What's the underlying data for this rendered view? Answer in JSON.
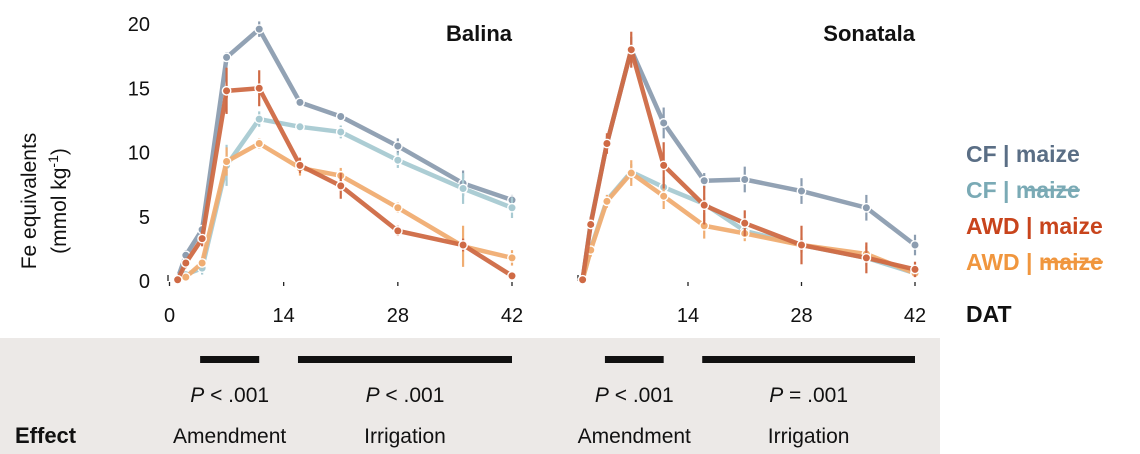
{
  "chart_data": {
    "type": "line",
    "ylabel": "Fe equivalents",
    "ylabel_unit_prefix": "(mmol kg",
    "ylabel_unit_sup": "-1",
    "ylabel_unit_suffix": ")",
    "ylim": [
      0,
      20
    ],
    "yticks": [
      "0",
      "5",
      "10",
      "15",
      "20"
    ],
    "xlim": [
      0,
      42
    ],
    "xaxis_label": "DAT",
    "colors": {
      "CF_maize": "#8c9db0",
      "CF_nomaize": "#a8cad2",
      "AWD_maize": "#cf6a45",
      "AWD_nomaize": "#f0ad72"
    },
    "legend": [
      {
        "id": "CF_maize",
        "prefix": "CF | ",
        "maize": "maize",
        "struck": false,
        "color": "#5a6e85"
      },
      {
        "id": "CF_nomaize",
        "prefix": "CF | ",
        "maize": "maize",
        "struck": true,
        "color": "#7aaab5"
      },
      {
        "id": "AWD_maize",
        "prefix": "AWD | ",
        "maize": "maize",
        "struck": false,
        "color": "#c8441c"
      },
      {
        "id": "AWD_nomaize",
        "prefix": "AWD | ",
        "maize": "maize",
        "struck": true,
        "color": "#f0963e"
      }
    ],
    "panels": [
      {
        "title": "Balina",
        "xticks": [
          "0",
          "14",
          "28",
          "42"
        ],
        "xtick_values": [
          0,
          14,
          28,
          42
        ],
        "series": [
          {
            "id": "CF_maize",
            "x": [
              1,
              2,
              4,
              7,
              11,
              16,
              21,
              28,
              36,
              42
            ],
            "y": [
              0.2,
              2.0,
              4.0,
              17.4,
              19.6,
              13.9,
              12.8,
              10.5,
              7.6,
              6.3
            ],
            "err": [
              0.1,
              0.4,
              0.6,
              0.4,
              0.6,
              0.3,
              0.3,
              0.6,
              1.0,
              0.4
            ]
          },
          {
            "id": "CF_nomaize",
            "x": [
              1,
              2,
              4,
              7,
              11,
              16,
              21,
              28,
              36,
              42
            ],
            "y": [
              0.1,
              0.5,
              1.0,
              9.0,
              12.6,
              12.0,
              11.6,
              9.4,
              7.2,
              5.7
            ],
            "err": [
              0.1,
              0.3,
              0.5,
              1.6,
              0.6,
              0.3,
              0.5,
              0.6,
              1.2,
              0.8
            ]
          },
          {
            "id": "AWD_maize",
            "x": [
              1,
              2,
              4,
              7,
              11,
              16,
              21,
              28,
              36,
              42
            ],
            "y": [
              0.1,
              1.4,
              3.3,
              14.8,
              15.0,
              9.0,
              7.4,
              3.9,
              2.8,
              0.4
            ],
            "err": [
              0.1,
              0.4,
              0.6,
              1.8,
              1.4,
              0.6,
              1.0,
              0.4,
              0.5,
              0.2
            ]
          },
          {
            "id": "AWD_nomaize",
            "x": [
              1,
              2,
              4,
              7,
              11,
              16,
              21,
              28,
              36,
              42
            ],
            "y": [
              0.1,
              0.3,
              1.4,
              9.3,
              10.7,
              8.8,
              8.2,
              5.7,
              2.7,
              1.8
            ],
            "err": [
              0.1,
              0.2,
              0.4,
              1.1,
              0.4,
              0.6,
              0.6,
              0.4,
              1.6,
              0.6
            ]
          }
        ],
        "bars": [
          {
            "x0": 4,
            "x1": 11,
            "p": "< .001",
            "label": "Amendment"
          },
          {
            "x0": 16,
            "x1": 42,
            "p": "< .001",
            "label": "Irrigation"
          }
        ]
      },
      {
        "title": "Sonatala",
        "xticks": [
          "14",
          "28",
          "42"
        ],
        "xtick_values": [
          14,
          28,
          42
        ],
        "series": [
          {
            "id": "CF_maize",
            "x": [
              1,
              2,
              4,
              7,
              11,
              16,
              21,
              28,
              36,
              42
            ],
            "y": [
              0.1,
              4.5,
              10.7,
              18.0,
              12.3,
              7.8,
              7.9,
              7.0,
              5.7,
              2.8
            ],
            "err": [
              0.1,
              0.4,
              0.6,
              1.0,
              1.2,
              0.6,
              1.0,
              1.0,
              1.0,
              0.8
            ]
          },
          {
            "id": "CF_nomaize",
            "x": [
              1,
              2,
              4,
              7,
              11,
              16,
              21,
              28,
              36,
              42
            ],
            "y": [
              0.1,
              2.5,
              6.3,
              8.5,
              7.3,
              6.0,
              3.9,
              2.8,
              1.8,
              0.6
            ],
            "err": [
              0.1,
              0.3,
              0.4,
              0.6,
              0.8,
              0.5,
              0.6,
              0.5,
              0.6,
              0.3
            ]
          },
          {
            "id": "AWD_maize",
            "x": [
              1,
              2,
              4,
              7,
              11,
              16,
              21,
              28,
              36,
              42
            ],
            "y": [
              0.1,
              4.4,
              10.7,
              18.0,
              9.0,
              5.9,
              4.5,
              2.8,
              1.8,
              0.9
            ],
            "err": [
              0.1,
              0.6,
              0.8,
              1.4,
              1.8,
              1.5,
              1.0,
              1.5,
              1.2,
              0.6
            ]
          },
          {
            "id": "AWD_nomaize",
            "x": [
              1,
              2,
              4,
              7,
              11,
              16,
              21,
              28,
              36,
              42
            ],
            "y": [
              0.1,
              2.4,
              6.2,
              8.4,
              6.6,
              4.3,
              3.7,
              2.8,
              2.1,
              0.6
            ],
            "err": [
              0.1,
              0.5,
              0.5,
              1.0,
              1.0,
              1.0,
              0.6,
              0.6,
              0.6,
              0.3
            ]
          }
        ],
        "bars": [
          {
            "x0": 4,
            "x1": 11,
            "p": "< .001",
            "label": "Amendment"
          },
          {
            "x0": 16,
            "x1": 42,
            "p": "= .001",
            "label": "Irrigation"
          }
        ]
      }
    ],
    "effect_label": "Effect",
    "p_symbol": "P",
    "selected_series": "AWD_maize"
  }
}
